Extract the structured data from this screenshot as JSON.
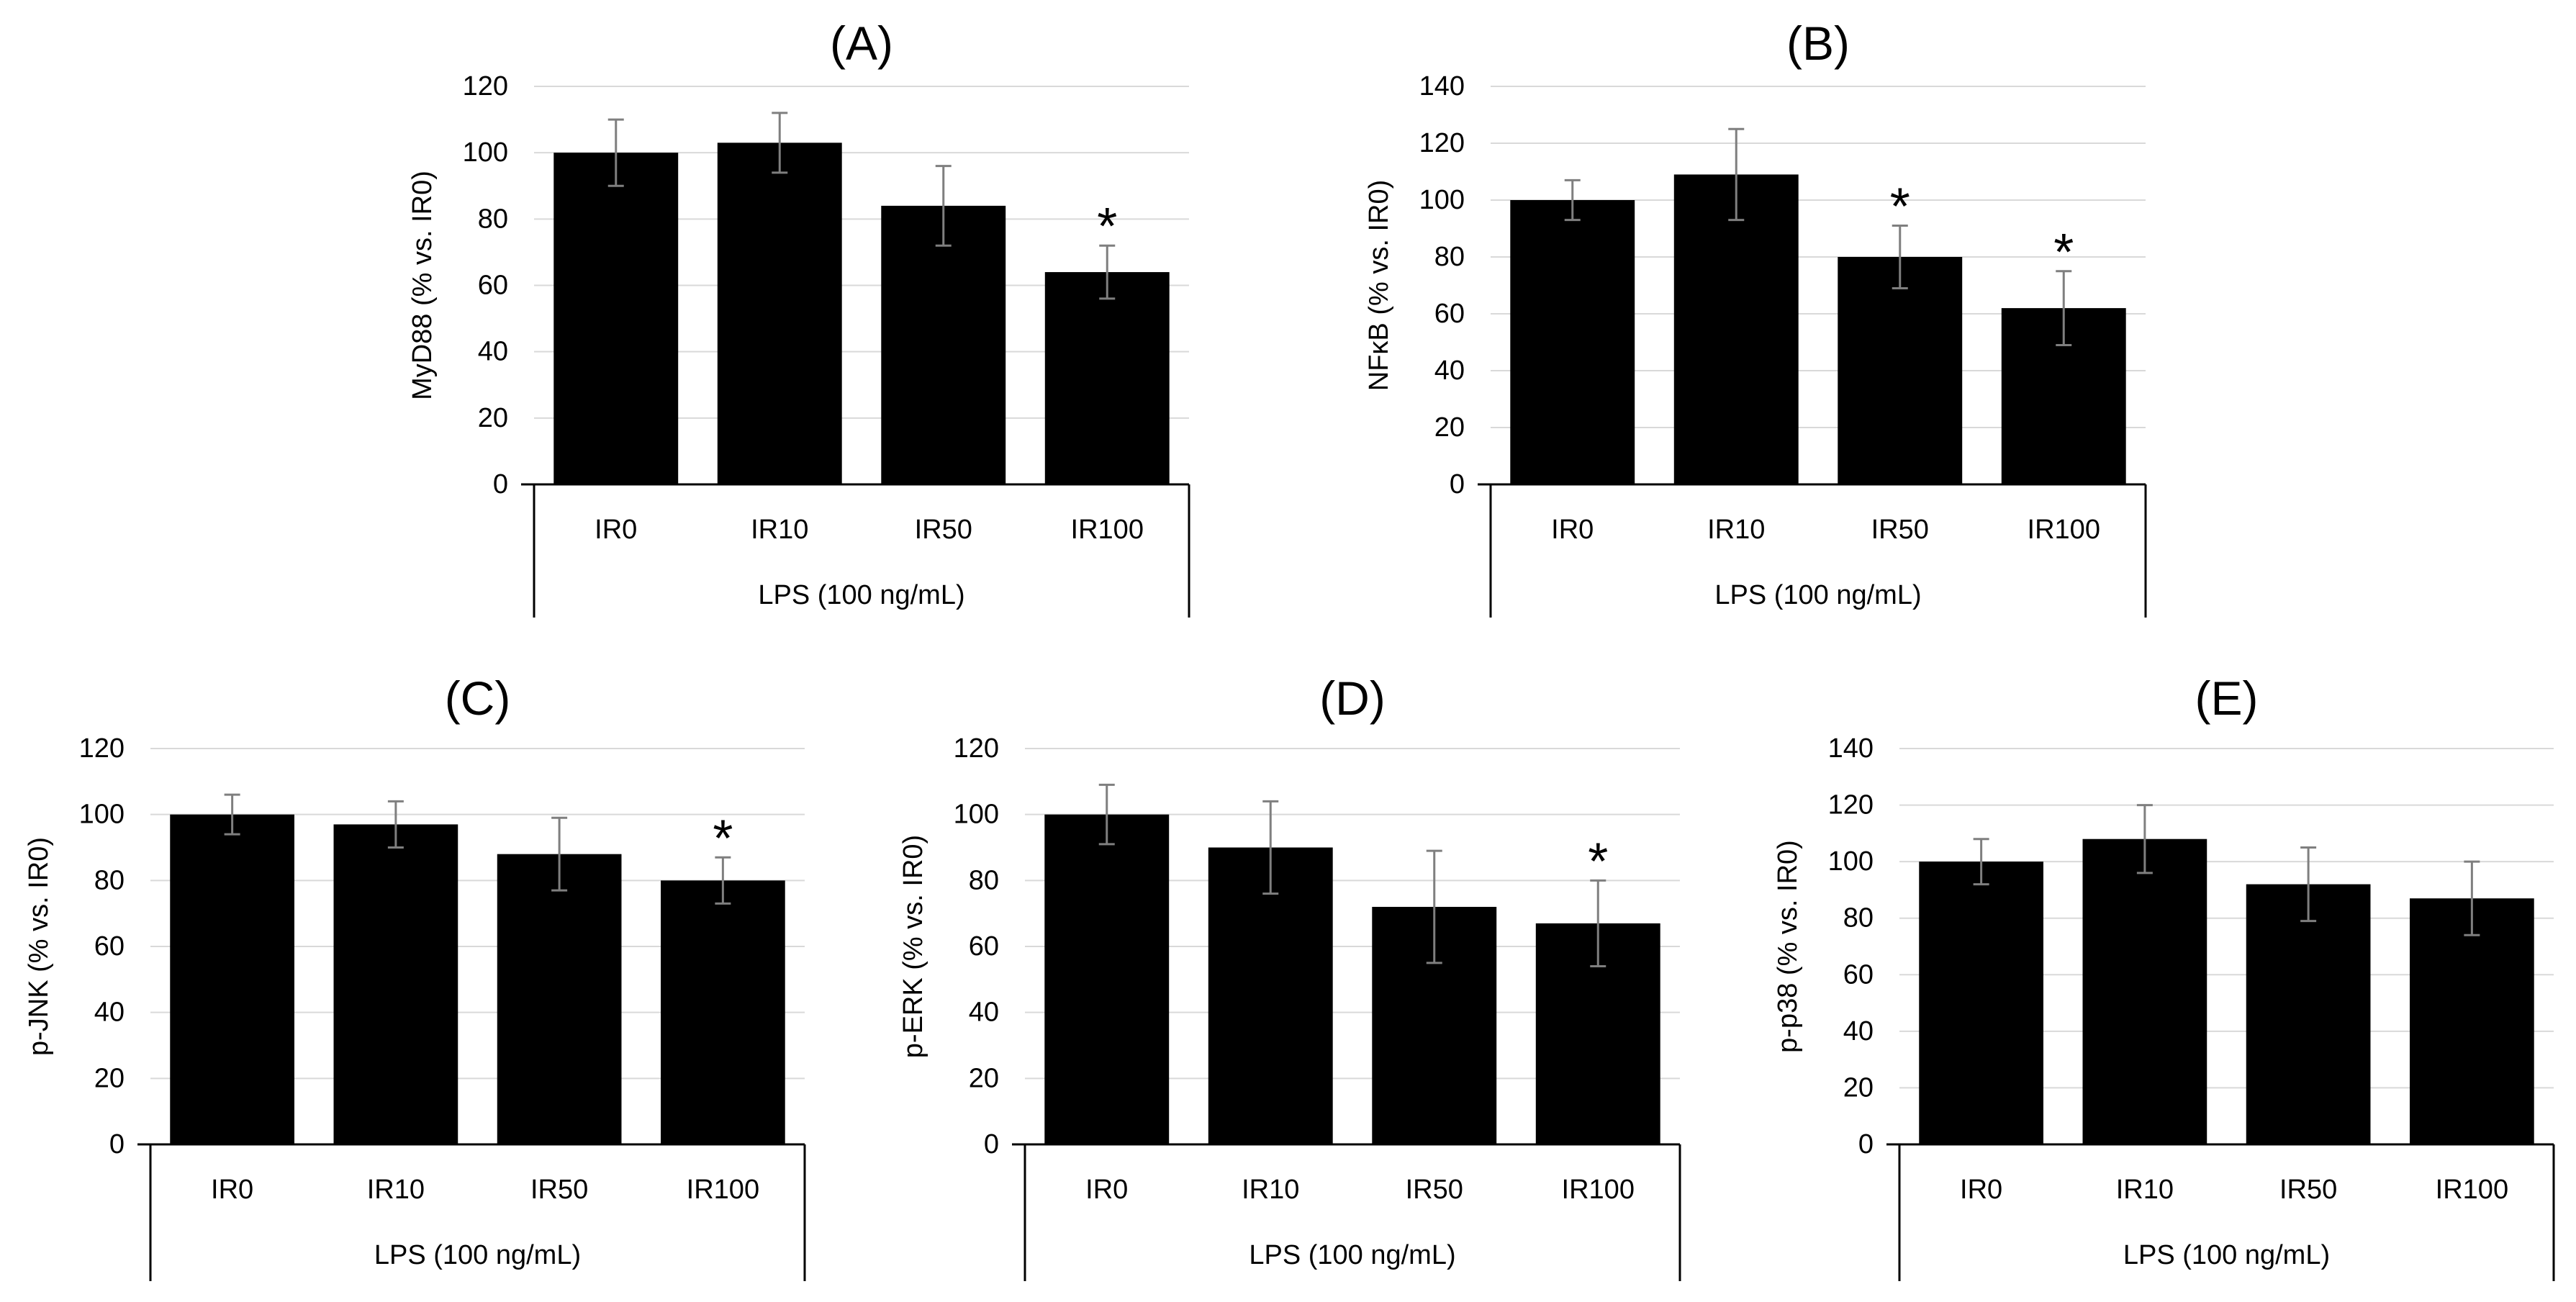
{
  "chart_data": [
    {
      "type": "bar",
      "title": "(A)",
      "ylabel": "MyD88 (% vs. IR0)",
      "xlabel": "LPS (100 ng/mL)",
      "categories": [
        "IR0",
        "IR10",
        "IR50",
        "IR100"
      ],
      "values": [
        100,
        103,
        84,
        64
      ],
      "errors": [
        10,
        9,
        12,
        8
      ],
      "significant": [
        "",
        "",
        "",
        "*"
      ],
      "ylim": [
        0,
        120
      ],
      "yticks": [
        0,
        20,
        40,
        60,
        80,
        100,
        120
      ],
      "grid": true,
      "bar_color": "#000000"
    },
    {
      "type": "bar",
      "title": "(B)",
      "ylabel": "NFκB (% vs. IR0)",
      "xlabel": "LPS (100 ng/mL)",
      "categories": [
        "IR0",
        "IR10",
        "IR50",
        "IR100"
      ],
      "values": [
        100,
        109,
        80,
        62
      ],
      "errors": [
        7,
        16,
        11,
        13
      ],
      "significant": [
        "",
        "",
        "*",
        "*"
      ],
      "ylim": [
        0,
        140
      ],
      "yticks": [
        0,
        20,
        40,
        60,
        80,
        100,
        120,
        140
      ],
      "grid": true,
      "bar_color": "#000000"
    },
    {
      "type": "bar",
      "title": "(C)",
      "ylabel": "p-JNK (% vs. IR0)",
      "xlabel": "LPS (100 ng/mL)",
      "categories": [
        "IR0",
        "IR10",
        "IR50",
        "IR100"
      ],
      "values": [
        100,
        97,
        88,
        80
      ],
      "errors": [
        6,
        7,
        11,
        7
      ],
      "significant": [
        "",
        "",
        "",
        "*"
      ],
      "ylim": [
        0,
        120
      ],
      "yticks": [
        0,
        20,
        40,
        60,
        80,
        100,
        120
      ],
      "grid": true,
      "bar_color": "#000000"
    },
    {
      "type": "bar",
      "title": "(D)",
      "ylabel": "p-ERK (% vs. IR0)",
      "xlabel": "LPS (100 ng/mL)",
      "categories": [
        "IR0",
        "IR10",
        "IR50",
        "IR100"
      ],
      "values": [
        100,
        90,
        72,
        67
      ],
      "errors": [
        9,
        14,
        17,
        13
      ],
      "significant": [
        "",
        "",
        "",
        "*"
      ],
      "ylim": [
        0,
        120
      ],
      "yticks": [
        0,
        20,
        40,
        60,
        80,
        100,
        120
      ],
      "grid": true,
      "bar_color": "#000000"
    },
    {
      "type": "bar",
      "title": "(E)",
      "ylabel": "p-p38 (% vs. IR0)",
      "xlabel": "LPS (100 ng/mL)",
      "categories": [
        "IR0",
        "IR10",
        "IR50",
        "IR100"
      ],
      "values": [
        100,
        108,
        92,
        87
      ],
      "errors": [
        8,
        12,
        13,
        13
      ],
      "significant": [
        "",
        "",
        "",
        ""
      ],
      "ylim": [
        0,
        140
      ],
      "yticks": [
        0,
        20,
        40,
        60,
        80,
        100,
        120,
        140
      ],
      "grid": true,
      "bar_color": "#000000"
    }
  ]
}
